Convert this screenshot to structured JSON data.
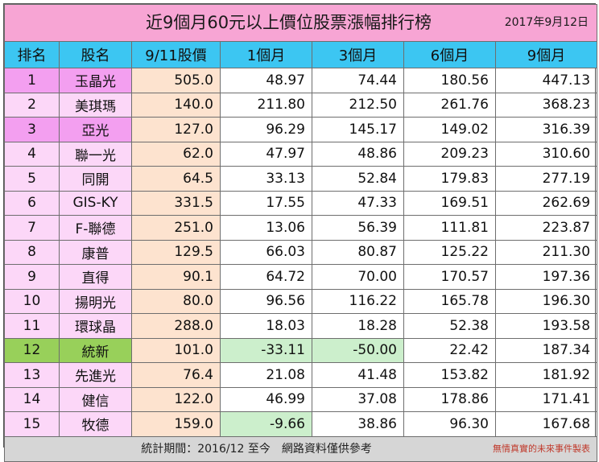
{
  "title": "近9個月60元以上價位股票漲幅排行榜",
  "date": "2017年9月12日",
  "headers": [
    "排名",
    "股名",
    "9/11股價",
    "1個月",
    "3個月",
    "6個月",
    "9個月"
  ],
  "rows": [
    {
      "rank": "1",
      "name": "玉晶光",
      "price": "505.0",
      "m1": "48.97",
      "m3": "74.44",
      "m6": "180.56",
      "m9": "447.13"
    },
    {
      "rank": "2",
      "name": "美琪瑪",
      "price": "140.0",
      "m1": "211.80",
      "m3": "212.50",
      "m6": "261.76",
      "m9": "368.23"
    },
    {
      "rank": "3",
      "name": "亞光",
      "price": "127.0",
      "m1": "96.29",
      "m3": "145.17",
      "m6": "149.02",
      "m9": "316.39"
    },
    {
      "rank": "4",
      "name": "聯一光",
      "price": "62.0",
      "m1": "47.97",
      "m3": "48.86",
      "m6": "209.23",
      "m9": "310.60"
    },
    {
      "rank": "5",
      "name": "同開",
      "price": "64.5",
      "m1": "33.13",
      "m3": "52.84",
      "m6": "179.83",
      "m9": "277.19"
    },
    {
      "rank": "6",
      "name": "GIS-KY",
      "price": "331.5",
      "m1": "17.55",
      "m3": "47.33",
      "m6": "169.51",
      "m9": "262.69"
    },
    {
      "rank": "7",
      "name": "F-聯德",
      "price": "251.0",
      "m1": "13.06",
      "m3": "56.39",
      "m6": "111.81",
      "m9": "223.87"
    },
    {
      "rank": "8",
      "name": "康普",
      "price": "129.5",
      "m1": "66.03",
      "m3": "80.87",
      "m6": "125.22",
      "m9": "211.30"
    },
    {
      "rank": "9",
      "name": "直得",
      "price": "90.1",
      "m1": "64.72",
      "m3": "70.00",
      "m6": "170.57",
      "m9": "197.36"
    },
    {
      "rank": "10",
      "name": "揚明光",
      "price": "80.0",
      "m1": "96.56",
      "m3": "116.22",
      "m6": "165.78",
      "m9": "196.30"
    },
    {
      "rank": "11",
      "name": "環球晶",
      "price": "288.0",
      "m1": "18.03",
      "m3": "18.28",
      "m6": "52.38",
      "m9": "193.58"
    },
    {
      "rank": "12",
      "name": "統新",
      "price": "101.0",
      "m1": "-33.11",
      "m3": "-50.00",
      "m6": "22.42",
      "m9": "187.34"
    },
    {
      "rank": "13",
      "name": "先進光",
      "price": "76.4",
      "m1": "21.08",
      "m3": "41.48",
      "m6": "153.82",
      "m9": "181.92"
    },
    {
      "rank": "14",
      "name": "健信",
      "price": "122.0",
      "m1": "46.99",
      "m3": "37.08",
      "m6": "178.86",
      "m9": "171.41"
    },
    {
      "rank": "15",
      "name": "牧德",
      "price": "159.0",
      "m1": "-9.66",
      "m3": "38.86",
      "m6": "96.30",
      "m9": "167.68"
    }
  ],
  "footer": {
    "note": "統計期間：2016/12 至今　網路資料僅供參考",
    "credit": "無情真實的未來事件製表"
  },
  "colors": {
    "title_bg": "#f7a5d4",
    "header_bg": "#3cc6f2",
    "rank_top_bg": "#f39ff0",
    "rank_mid_bg": "#fcd7f8",
    "rank_green_bg": "#98d05a",
    "price_bg": "#fde3cf",
    "negative_bg": "#ccefcc",
    "footer_bg": "#d6d6d6"
  }
}
